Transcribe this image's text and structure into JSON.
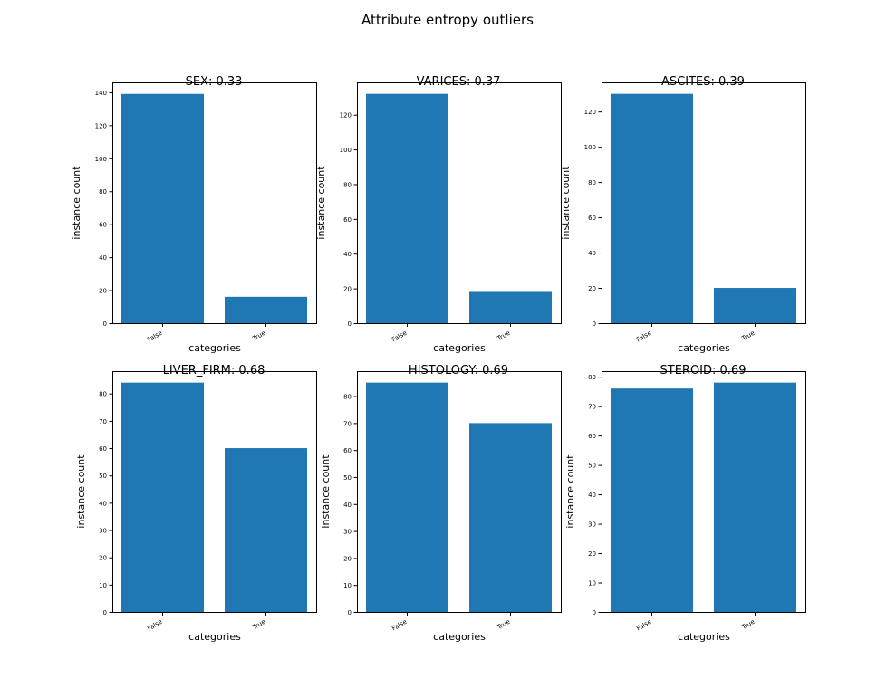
{
  "figure": {
    "title": "Attribute entropy outliers"
  },
  "chart_data": [
    {
      "type": "bar",
      "title": "SEX: 0.33",
      "xlabel": "categories",
      "ylabel": "instance count",
      "categories": [
        "False",
        "True"
      ],
      "values": [
        139,
        16
      ],
      "ylim": [
        0,
        146
      ],
      "yticks": [
        0,
        20,
        40,
        60,
        80,
        100,
        120,
        140
      ],
      "grid": false
    },
    {
      "type": "bar",
      "title": "VARICES: 0.37",
      "xlabel": "categories",
      "ylabel": "instance count",
      "categories": [
        "False",
        "True"
      ],
      "values": [
        132,
        18
      ],
      "ylim": [
        0,
        138.6
      ],
      "yticks": [
        0,
        20,
        40,
        60,
        80,
        100,
        120
      ],
      "grid": false
    },
    {
      "type": "bar",
      "title": "ASCITES: 0.39",
      "xlabel": "categories",
      "ylabel": "instance count",
      "categories": [
        "False",
        "True"
      ],
      "values": [
        130,
        20
      ],
      "ylim": [
        0,
        136.5
      ],
      "yticks": [
        0,
        20,
        40,
        60,
        80,
        100,
        120
      ],
      "grid": false
    },
    {
      "type": "bar",
      "title": "LIVER_FIRM: 0.68",
      "xlabel": "categories",
      "ylabel": "instance count",
      "categories": [
        "False",
        "True"
      ],
      "values": [
        84,
        60
      ],
      "ylim": [
        0,
        88.2
      ],
      "yticks": [
        0,
        10,
        20,
        30,
        40,
        50,
        60,
        70,
        80
      ],
      "grid": false
    },
    {
      "type": "bar",
      "title": "HISTOLOGY: 0.69",
      "xlabel": "categories",
      "ylabel": "instance count",
      "categories": [
        "False",
        "True"
      ],
      "values": [
        85,
        70
      ],
      "ylim": [
        0,
        89.25
      ],
      "yticks": [
        0,
        10,
        20,
        30,
        40,
        50,
        60,
        70,
        80
      ],
      "grid": false
    },
    {
      "type": "bar",
      "title": "STEROID: 0.69",
      "xlabel": "categories",
      "ylabel": "instance count",
      "categories": [
        "False",
        "True"
      ],
      "values": [
        76,
        78
      ],
      "ylim": [
        0,
        81.9
      ],
      "yticks": [
        0,
        10,
        20,
        30,
        40,
        50,
        60,
        70,
        80
      ],
      "grid": false
    }
  ]
}
